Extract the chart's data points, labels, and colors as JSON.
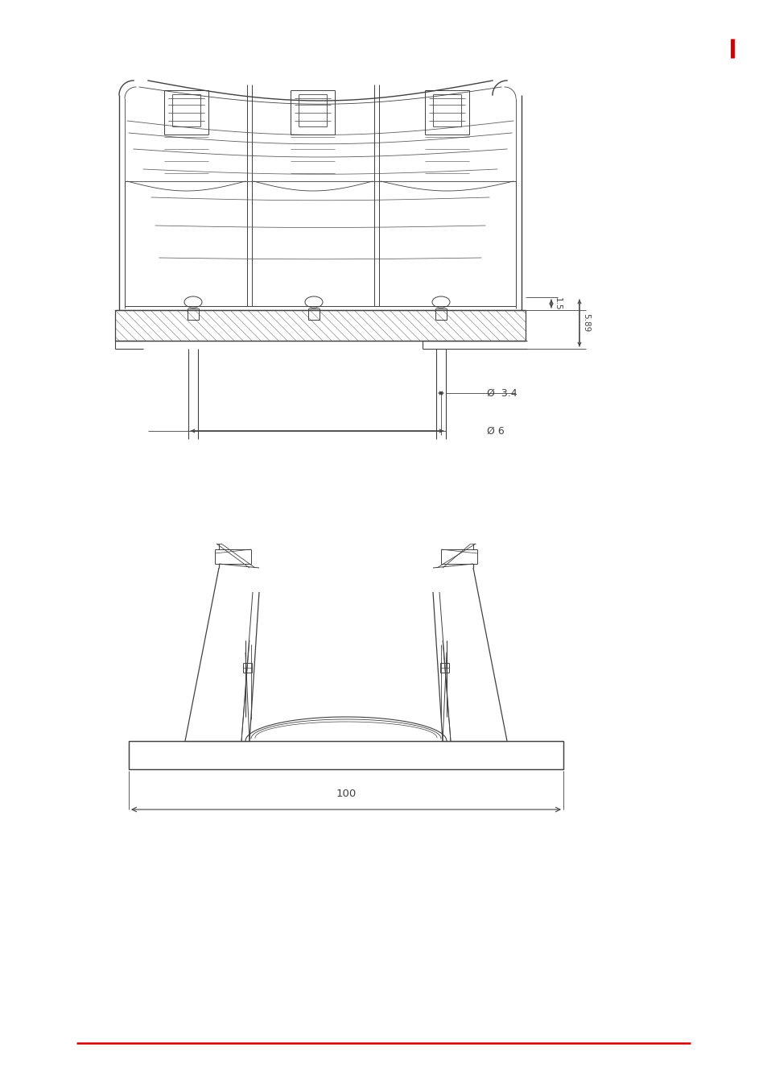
{
  "bg_color": "#ffffff",
  "lc": "#404040",
  "rc": "#cc0000",
  "fig_width": 9.54,
  "fig_height": 13.52,
  "dim_1_5": "1.5",
  "dim_5_89": "5.89",
  "dim_3_4": "3.4",
  "dim_6": "6",
  "dim_100": "100",
  "phi": "Ø"
}
